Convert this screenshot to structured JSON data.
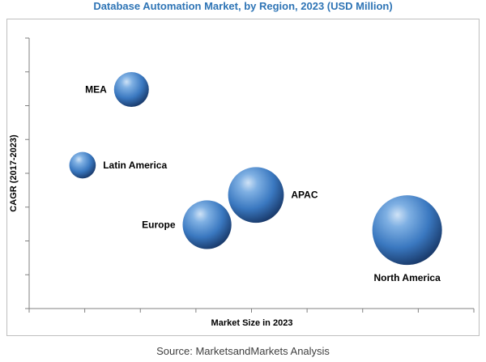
{
  "chart_data": {
    "type": "scatter",
    "variant": "bubble",
    "title": "Database Automation Market, by Region, 2023 (USD Million)",
    "xlabel": "Market Size in 2023",
    "ylabel": "CAGR (2017-2023)",
    "xlim": [
      0,
      100
    ],
    "ylim": [
      0,
      100
    ],
    "x_ticks": 8,
    "y_ticks": 8,
    "axis_tick_labels": "none",
    "grid": false,
    "legend": "none",
    "bubble_color": "#2f6fb3",
    "points": [
      {
        "label": "MEA",
        "x": 23,
        "y": 81,
        "size": 0.5,
        "label_position": "left"
      },
      {
        "label": "Latin America",
        "x": 12,
        "y": 53,
        "size": 0.38,
        "label_position": "right"
      },
      {
        "label": "Europe",
        "x": 40,
        "y": 31,
        "size": 0.7,
        "label_position": "left"
      },
      {
        "label": "APAC",
        "x": 51,
        "y": 42,
        "size": 0.8,
        "label_position": "right"
      },
      {
        "label": "North America",
        "x": 85,
        "y": 29,
        "size": 1.0,
        "label_position": "below"
      }
    ]
  },
  "source": "Source: MarketsandMarkets Analysis"
}
